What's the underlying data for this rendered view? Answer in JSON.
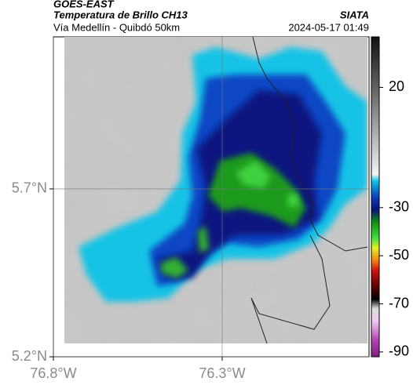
{
  "header": {
    "source": "GOES-EAST",
    "title": "Temperatura de Brillo CH13",
    "credit": "SIATA",
    "subtitle": "Vía Medellín - Quibdó 50km",
    "timestamp": "2024-05-17 01:49"
  },
  "map": {
    "xlim": [
      -76.8,
      -75.865
    ],
    "ylim": [
      5.2,
      6.153
    ],
    "xticks": [
      {
        "value": -76.8,
        "label": "76.8°W"
      },
      {
        "value": -76.3,
        "label": "76.3°W"
      }
    ],
    "yticks": [
      {
        "value": 5.2,
        "label": "5.2°N"
      },
      {
        "value": 5.7,
        "label": "5.7°N"
      }
    ]
  },
  "colorbar": {
    "clim": [
      -92,
      41
    ],
    "ticks": [
      20,
      -30,
      -50,
      -70,
      -90
    ]
  }
}
